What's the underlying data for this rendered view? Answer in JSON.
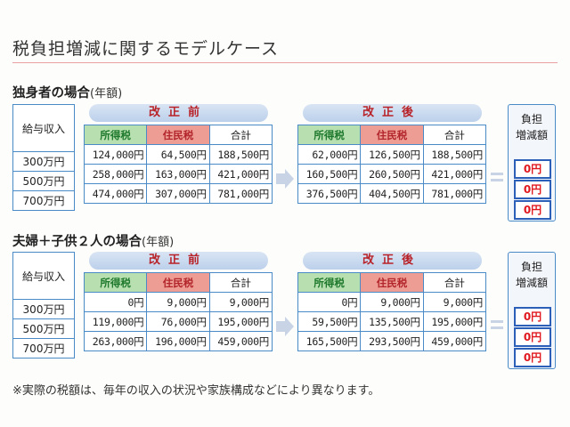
{
  "title": "税負担増減に関するモデルケース",
  "income_header": "給与収入",
  "before_label": "改正前",
  "after_label": "改正後",
  "col_income_tax": "所得税",
  "col_resident_tax": "住民税",
  "col_total": "合計",
  "result_header_line1": "負担",
  "result_header_line2": "増減額",
  "footnote": "※実際の税額は、毎年の収入の状況や家族構成などにより異なります。",
  "sections": [
    {
      "heading": "独身者の場合",
      "subheading": "(年額)",
      "incomes": [
        "300万円",
        "500万円",
        "700万円"
      ],
      "before": [
        [
          "124,000円",
          "64,500円",
          "188,500円"
        ],
        [
          "258,000円",
          "163,000円",
          "421,000円"
        ],
        [
          "474,000円",
          "307,000円",
          "781,000円"
        ]
      ],
      "after": [
        [
          "62,000円",
          "126,500円",
          "188,500円"
        ],
        [
          "160,500円",
          "260,500円",
          "421,000円"
        ],
        [
          "376,500円",
          "404,500円",
          "781,000円"
        ]
      ],
      "results": [
        "0円",
        "0円",
        "0円"
      ]
    },
    {
      "heading": "夫婦＋子供２人の場合",
      "subheading": "(年額)",
      "incomes": [
        "300万円",
        "500万円",
        "700万円"
      ],
      "before": [
        [
          "0円",
          "9,000円",
          "9,000円"
        ],
        [
          "119,000円",
          "76,000円",
          "195,000円"
        ],
        [
          "263,000円",
          "196,000円",
          "459,000円"
        ]
      ],
      "after": [
        [
          "0円",
          "9,000円",
          "9,000円"
        ],
        [
          "59,500円",
          "135,500円",
          "195,000円"
        ],
        [
          "165,500円",
          "293,500円",
          "459,000円"
        ]
      ],
      "results": [
        "0円",
        "0円",
        "0円"
      ]
    }
  ]
}
